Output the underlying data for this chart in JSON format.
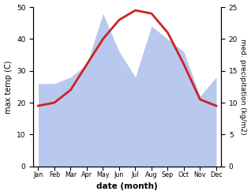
{
  "months": [
    "Jan",
    "Feb",
    "Mar",
    "Apr",
    "May",
    "Jun",
    "Jul",
    "Aug",
    "Sep",
    "Oct",
    "Nov",
    "Dec"
  ],
  "temperature": [
    19,
    20,
    24,
    32,
    40,
    46,
    49,
    48,
    42,
    32,
    21,
    19
  ],
  "precipitation": [
    13,
    13,
    14,
    16,
    24,
    18,
    14,
    22,
    20,
    18,
    11,
    14
  ],
  "temp_color": "#cc2222",
  "precip_color": "#b8c8ee",
  "title": "",
  "xlabel": "date (month)",
  "ylabel_left": "max temp (C)",
  "ylabel_right": "med. precipitation (kg/m2)",
  "ylim_left": [
    0,
    50
  ],
  "ylim_right": [
    0,
    25
  ],
  "background_color": "#ffffff",
  "temp_linewidth": 2.0
}
